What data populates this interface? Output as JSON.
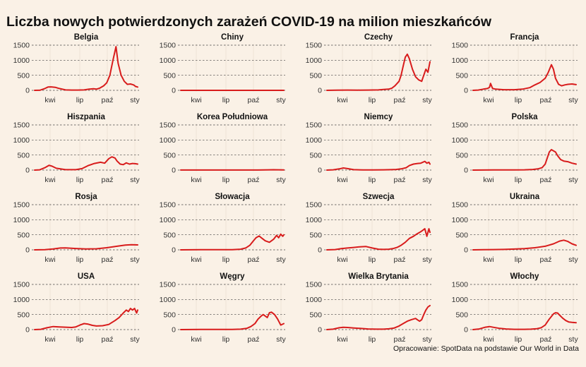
{
  "title": "Liczba nowych potwierdzonych zarażeń COVID-19 na milion mieszkańców",
  "source": "Opracowanie: SpotData na podstawie Our World in Data",
  "colors": {
    "series": "#d81c1c",
    "background": "#faf1e6"
  },
  "chart_data": [
    {
      "type": "line",
      "title": "Belgia",
      "x_ticks": [
        "kwi",
        "lip",
        "paź",
        "sty"
      ],
      "y_ticks": [
        0,
        500,
        1000,
        1500
      ],
      "ylim": [
        0,
        1500
      ],
      "xlim": [
        0,
        1
      ],
      "x": [
        0,
        0.05,
        0.1,
        0.13,
        0.16,
        0.2,
        0.24,
        0.3,
        0.36,
        0.42,
        0.48,
        0.53,
        0.57,
        0.6,
        0.63,
        0.67,
        0.7,
        0.73,
        0.76,
        0.79,
        0.81,
        0.84,
        0.87,
        0.9,
        0.93,
        0.96,
        0.98,
        1.0
      ],
      "y": [
        0,
        2,
        60,
        110,
        115,
        100,
        60,
        15,
        10,
        10,
        15,
        40,
        55,
        40,
        70,
        150,
        250,
        500,
        1000,
        1450,
        900,
        500,
        300,
        200,
        210,
        180,
        130,
        110
      ]
    },
    {
      "type": "line",
      "title": "Chiny",
      "x_ticks": [
        "kwi",
        "lip",
        "paź",
        "sty"
      ],
      "y_ticks": [
        0,
        500,
        1000,
        1500
      ],
      "ylim": [
        0,
        1500
      ],
      "xlim": [
        0,
        1
      ],
      "x": [
        0,
        0.25,
        0.5,
        0.75,
        1.0
      ],
      "y": [
        1,
        0,
        0,
        0,
        0
      ]
    },
    {
      "type": "line",
      "title": "Czechy",
      "x_ticks": [
        "kwi",
        "lip",
        "paź",
        "sty"
      ],
      "y_ticks": [
        0,
        500,
        1000,
        1500
      ],
      "ylim": [
        0,
        1500
      ],
      "xlim": [
        0,
        1
      ],
      "x": [
        0,
        0.1,
        0.2,
        0.3,
        0.4,
        0.5,
        0.55,
        0.6,
        0.63,
        0.66,
        0.7,
        0.72,
        0.74,
        0.76,
        0.78,
        0.8,
        0.83,
        0.86,
        0.89,
        0.92,
        0.94,
        0.96,
        0.98,
        1.0
      ],
      "y": [
        0,
        5,
        10,
        8,
        10,
        15,
        30,
        40,
        70,
        150,
        300,
        500,
        800,
        1100,
        1200,
        1050,
        700,
        450,
        350,
        300,
        500,
        700,
        600,
        950
      ]
    },
    {
      "type": "line",
      "title": "Francja",
      "x_ticks": [
        "kwi",
        "lip",
        "paź",
        "sty"
      ],
      "y_ticks": [
        0,
        500,
        1000,
        1500
      ],
      "ylim": [
        0,
        1500
      ],
      "xlim": [
        0,
        1
      ],
      "x": [
        0,
        0.05,
        0.1,
        0.14,
        0.16,
        0.17,
        0.19,
        0.22,
        0.3,
        0.4,
        0.48,
        0.55,
        0.6,
        0.65,
        0.7,
        0.73,
        0.76,
        0.78,
        0.8,
        0.83,
        0.86,
        0.89,
        0.92,
        0.96,
        1.0
      ],
      "y": [
        0,
        10,
        40,
        60,
        100,
        230,
        60,
        40,
        20,
        20,
        40,
        90,
        180,
        260,
        400,
        600,
        850,
        700,
        400,
        200,
        150,
        180,
        200,
        210,
        190
      ]
    },
    {
      "type": "line",
      "title": "Hiszpania",
      "x_ticks": [
        "kwi",
        "lip",
        "paź",
        "sty"
      ],
      "y_ticks": [
        0,
        500,
        1000,
        1500
      ],
      "ylim": [
        0,
        1500
      ],
      "xlim": [
        0,
        1
      ],
      "x": [
        0,
        0.05,
        0.1,
        0.14,
        0.17,
        0.21,
        0.25,
        0.3,
        0.4,
        0.46,
        0.52,
        0.58,
        0.64,
        0.68,
        0.72,
        0.75,
        0.78,
        0.8,
        0.83,
        0.86,
        0.89,
        0.92,
        0.95,
        0.98,
        1.0
      ],
      "y": [
        0,
        10,
        80,
        160,
        130,
        60,
        40,
        15,
        15,
        50,
        150,
        220,
        260,
        230,
        380,
        440,
        400,
        300,
        200,
        180,
        240,
        200,
        220,
        210,
        200
      ]
    },
    {
      "type": "line",
      "title": "Korea Południowa",
      "x_ticks": [
        "kwi",
        "lip",
        "paź",
        "sty"
      ],
      "y_ticks": [
        0,
        500,
        1000,
        1500
      ],
      "ylim": [
        0,
        1500
      ],
      "xlim": [
        0,
        1
      ],
      "x": [
        0,
        0.25,
        0.5,
        0.75,
        0.9,
        1.0
      ],
      "y": [
        2,
        2,
        2,
        3,
        12,
        6
      ]
    },
    {
      "type": "line",
      "title": "Niemcy",
      "x_ticks": [
        "kwi",
        "lip",
        "paź",
        "sty"
      ],
      "y_ticks": [
        0,
        500,
        1000,
        1500
      ],
      "ylim": [
        0,
        1500
      ],
      "xlim": [
        0,
        1
      ],
      "x": [
        0,
        0.06,
        0.12,
        0.16,
        0.2,
        0.26,
        0.35,
        0.45,
        0.55,
        0.62,
        0.67,
        0.72,
        0.77,
        0.8,
        0.84,
        0.88,
        0.91,
        0.93,
        0.95,
        0.97,
        0.99,
        1.0
      ],
      "y": [
        0,
        10,
        40,
        70,
        50,
        15,
        5,
        5,
        10,
        15,
        20,
        40,
        80,
        150,
        200,
        220,
        230,
        260,
        290,
        230,
        260,
        200
      ]
    },
    {
      "type": "line",
      "title": "Polska",
      "x_ticks": [
        "kwi",
        "lip",
        "paź",
        "sty"
      ],
      "y_ticks": [
        0,
        500,
        1000,
        1500
      ],
      "ylim": [
        0,
        1500
      ],
      "xlim": [
        0,
        1
      ],
      "x": [
        0,
        0.1,
        0.2,
        0.3,
        0.4,
        0.5,
        0.58,
        0.63,
        0.67,
        0.7,
        0.72,
        0.74,
        0.76,
        0.78,
        0.8,
        0.82,
        0.85,
        0.88,
        0.92,
        0.96,
        1.0
      ],
      "y": [
        0,
        2,
        5,
        8,
        8,
        10,
        20,
        40,
        80,
        200,
        400,
        600,
        680,
        640,
        600,
        480,
        350,
        300,
        280,
        230,
        200
      ]
    },
    {
      "type": "line",
      "title": "Rosja",
      "x_ticks": [
        "kwi",
        "lip",
        "paź",
        "sty"
      ],
      "y_ticks": [
        0,
        500,
        1000,
        1500
      ],
      "ylim": [
        0,
        1500
      ],
      "xlim": [
        0,
        1
      ],
      "x": [
        0,
        0.1,
        0.18,
        0.25,
        0.3,
        0.4,
        0.5,
        0.6,
        0.7,
        0.8,
        0.88,
        0.94,
        1.0
      ],
      "y": [
        0,
        5,
        30,
        60,
        65,
        45,
        30,
        35,
        70,
        120,
        160,
        170,
        165
      ]
    },
    {
      "type": "line",
      "title": "Słowacja",
      "x_ticks": [
        "kwi",
        "lip",
        "paź",
        "sty"
      ],
      "y_ticks": [
        0,
        500,
        1000,
        1500
      ],
      "ylim": [
        0,
        1500
      ],
      "xlim": [
        0,
        1
      ],
      "x": [
        0,
        0.1,
        0.2,
        0.3,
        0.4,
        0.5,
        0.58,
        0.63,
        0.67,
        0.7,
        0.73,
        0.76,
        0.79,
        0.82,
        0.86,
        0.9,
        0.93,
        0.95,
        0.97,
        0.99,
        1.0
      ],
      "y": [
        0,
        2,
        5,
        5,
        5,
        8,
        20,
        60,
        150,
        280,
        400,
        460,
        380,
        300,
        250,
        350,
        480,
        400,
        520,
        450,
        500
      ]
    },
    {
      "type": "line",
      "title": "Szwecja",
      "x_ticks": [
        "kwi",
        "lip",
        "paź",
        "sty"
      ],
      "y_ticks": [
        0,
        500,
        1000,
        1500
      ],
      "ylim": [
        0,
        1500
      ],
      "xlim": [
        0,
        1
      ],
      "x": [
        0,
        0.08,
        0.14,
        0.2,
        0.26,
        0.32,
        0.38,
        0.44,
        0.5,
        0.55,
        0.6,
        0.64,
        0.68,
        0.72,
        0.76,
        0.8,
        0.84,
        0.87,
        0.9,
        0.93,
        0.95,
        0.97,
        0.99,
        1.0
      ],
      "y": [
        0,
        10,
        40,
        60,
        80,
        100,
        110,
        60,
        20,
        15,
        20,
        40,
        80,
        150,
        250,
        380,
        450,
        520,
        580,
        650,
        700,
        450,
        700,
        580
      ]
    },
    {
      "type": "line",
      "title": "Ukraina",
      "x_ticks": [
        "kwi",
        "lip",
        "paź",
        "sty"
      ],
      "y_ticks": [
        0,
        500,
        1000,
        1500
      ],
      "ylim": [
        0,
        1500
      ],
      "xlim": [
        0,
        1
      ],
      "x": [
        0,
        0.1,
        0.2,
        0.3,
        0.4,
        0.5,
        0.6,
        0.7,
        0.78,
        0.84,
        0.88,
        0.92,
        0.96,
        1.0
      ],
      "y": [
        0,
        5,
        10,
        15,
        25,
        40,
        70,
        120,
        200,
        290,
        320,
        280,
        200,
        150
      ]
    },
    {
      "type": "line",
      "title": "USA",
      "x_ticks": [
        "kwi",
        "lip",
        "paź",
        "sty"
      ],
      "y_ticks": [
        0,
        500,
        1000,
        1500
      ],
      "ylim": [
        0,
        1500
      ],
      "xlim": [
        0,
        1
      ],
      "x": [
        0,
        0.06,
        0.12,
        0.18,
        0.24,
        0.3,
        0.36,
        0.4,
        0.44,
        0.48,
        0.52,
        0.56,
        0.6,
        0.66,
        0.72,
        0.78,
        0.82,
        0.86,
        0.89,
        0.91,
        0.93,
        0.95,
        0.97,
        0.99,
        1.0
      ],
      "y": [
        0,
        10,
        60,
        100,
        90,
        80,
        70,
        90,
        150,
        200,
        180,
        140,
        120,
        130,
        170,
        300,
        400,
        550,
        650,
        600,
        700,
        650,
        700,
        550,
        650
      ]
    },
    {
      "type": "line",
      "title": "Węgry",
      "x_ticks": [
        "kwi",
        "lip",
        "paź",
        "sty"
      ],
      "y_ticks": [
        0,
        500,
        1000,
        1500
      ],
      "ylim": [
        0,
        1500
      ],
      "xlim": [
        0,
        1
      ],
      "x": [
        0,
        0.1,
        0.2,
        0.3,
        0.4,
        0.5,
        0.58,
        0.64,
        0.68,
        0.72,
        0.75,
        0.78,
        0.8,
        0.82,
        0.84,
        0.86,
        0.88,
        0.91,
        0.94,
        0.97,
        1.0
      ],
      "y": [
        0,
        2,
        5,
        5,
        5,
        8,
        15,
        40,
        100,
        200,
        350,
        450,
        500,
        450,
        400,
        560,
        580,
        500,
        350,
        150,
        200
      ]
    },
    {
      "type": "line",
      "title": "Wielka Brytania",
      "x_ticks": [
        "kwi",
        "lip",
        "paź",
        "sty"
      ],
      "y_ticks": [
        0,
        500,
        1000,
        1500
      ],
      "ylim": [
        0,
        1500
      ],
      "xlim": [
        0,
        1
      ],
      "x": [
        0,
        0.06,
        0.12,
        0.16,
        0.2,
        0.26,
        0.32,
        0.4,
        0.48,
        0.55,
        0.6,
        0.65,
        0.7,
        0.74,
        0.78,
        0.82,
        0.86,
        0.88,
        0.9,
        0.92,
        0.94,
        0.96,
        0.98,
        1.0
      ],
      "y": [
        0,
        15,
        60,
        75,
        70,
        55,
        40,
        20,
        15,
        15,
        25,
        50,
        120,
        200,
        280,
        330,
        370,
        320,
        280,
        330,
        500,
        650,
        750,
        800
      ]
    },
    {
      "type": "line",
      "title": "Włochy",
      "x_ticks": [
        "kwi",
        "lip",
        "paź",
        "sty"
      ],
      "y_ticks": [
        0,
        500,
        1000,
        1500
      ],
      "ylim": [
        0,
        1500
      ],
      "xlim": [
        0,
        1
      ],
      "x": [
        0,
        0.06,
        0.12,
        0.16,
        0.2,
        0.26,
        0.32,
        0.4,
        0.5,
        0.56,
        0.62,
        0.66,
        0.7,
        0.74,
        0.78,
        0.8,
        0.82,
        0.84,
        0.87,
        0.9,
        0.93,
        0.96,
        1.0
      ],
      "y": [
        0,
        20,
        80,
        100,
        75,
        40,
        20,
        10,
        10,
        15,
        30,
        60,
        150,
        350,
        520,
        560,
        550,
        480,
        380,
        300,
        250,
        240,
        230
      ]
    }
  ]
}
